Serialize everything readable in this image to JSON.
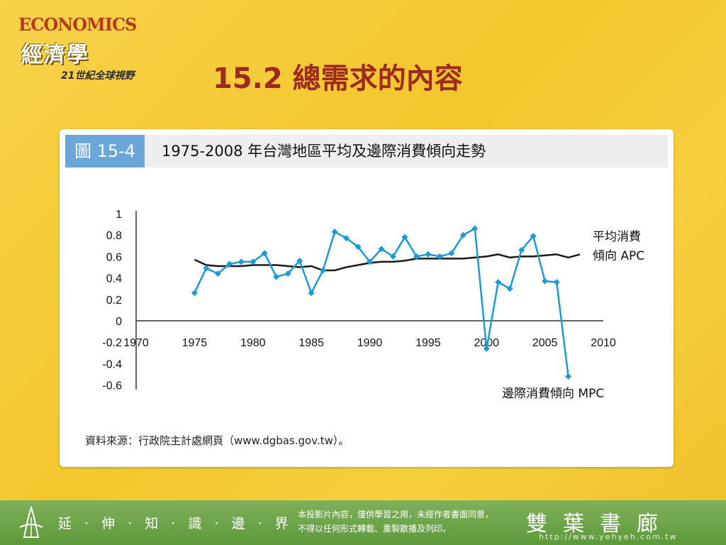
{
  "header": {
    "logo_en": "ECONOMICS",
    "logo_zh": "經濟學",
    "logo_sub": "21世紀全球視野",
    "title": "15.2 總需求的內容"
  },
  "figure": {
    "number": "圖 15-4",
    "title": "1975-2008 年台灣地區平均及邊際消費傾向走勢",
    "source": "資料來源：行政院主計處網頁（www.dgbas.gov.tw）。"
  },
  "chart_data": {
    "type": "line",
    "title": "1975-2008 年台灣地區平均及邊際消費傾向走勢",
    "xlim": [
      1970,
      2010
    ],
    "ylim": [
      -0.6,
      1
    ],
    "x_ticks": [
      "1970",
      "1975",
      "1980",
      "1985",
      "1990",
      "1995",
      "2000",
      "2005",
      "2010"
    ],
    "y_ticks": [
      "1",
      "0.8",
      "0.6",
      "0.4",
      "0.2",
      "0",
      "-0.2",
      "-0.4",
      "-0.6"
    ],
    "grid": false,
    "colors": {
      "apc": "#1a1a1a",
      "mpc": "#1b9ad6"
    },
    "series": [
      {
        "name": "平均消費傾向 APC",
        "label_lines": [
          "平均消費",
          "傾向 APC"
        ],
        "x": [
          1975,
          1976,
          1977,
          1978,
          1979,
          1980,
          1981,
          1982,
          1983,
          1984,
          1985,
          1986,
          1987,
          1988,
          1989,
          1990,
          1991,
          1992,
          1993,
          1994,
          1995,
          1996,
          1997,
          1998,
          1999,
          2000,
          2001,
          2002,
          2003,
          2004,
          2005,
          2006,
          2007,
          2008
        ],
        "values": [
          0.57,
          0.52,
          0.51,
          0.51,
          0.51,
          0.52,
          0.52,
          0.52,
          0.51,
          0.5,
          0.51,
          0.47,
          0.47,
          0.5,
          0.52,
          0.54,
          0.55,
          0.55,
          0.56,
          0.58,
          0.58,
          0.58,
          0.58,
          0.58,
          0.59,
          0.6,
          0.62,
          0.59,
          0.6,
          0.6,
          0.61,
          0.62,
          0.59,
          0.62
        ]
      },
      {
        "name": "邊際消費傾向 MPC",
        "label_lines": [
          "邊際消費傾向 MPC"
        ],
        "x": [
          1975,
          1976,
          1977,
          1978,
          1979,
          1980,
          1981,
          1982,
          1983,
          1984,
          1985,
          1986,
          1987,
          1988,
          1989,
          1990,
          1991,
          1992,
          1993,
          1994,
          1995,
          1996,
          1997,
          1998,
          1999,
          2000,
          2001,
          2002,
          2003,
          2004,
          2005,
          2006,
          2007
        ],
        "values": [
          0.26,
          0.49,
          0.44,
          0.53,
          0.55,
          0.55,
          0.63,
          0.41,
          0.44,
          0.56,
          0.26,
          0.47,
          0.83,
          0.77,
          0.69,
          0.55,
          0.67,
          0.6,
          0.78,
          0.6,
          0.62,
          0.6,
          0.63,
          0.8,
          0.86,
          -0.26,
          0.36,
          0.3,
          0.66,
          0.79,
          0.37,
          0.36,
          -0.52
        ]
      }
    ]
  },
  "footer": {
    "slogan": "延 · 伸 · 知 · 識 · 邊 · 界",
    "note_line1": "本投影片內容，僅供學習之用，未經作者書面同意，",
    "note_line2": "不得以任何形式轉載、重製散播及列印。",
    "brand": "雙葉書廊",
    "url": "http://www.yehyeh.com.tw"
  }
}
